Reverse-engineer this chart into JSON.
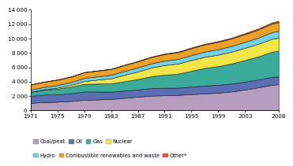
{
  "years": [
    1971,
    1973,
    1975,
    1977,
    1979,
    1981,
    1983,
    1985,
    1987,
    1989,
    1991,
    1993,
    1995,
    1997,
    1999,
    2001,
    2003,
    2005,
    2007,
    2008
  ],
  "coal_peat": [
    1040,
    1150,
    1200,
    1300,
    1480,
    1520,
    1580,
    1750,
    1900,
    2050,
    2100,
    2150,
    2250,
    2350,
    2450,
    2620,
    2900,
    3200,
    3550,
    3650
  ],
  "oil": [
    950,
    1050,
    1020,
    1080,
    1150,
    1100,
    1020,
    1000,
    1000,
    1050,
    1050,
    1000,
    1050,
    1100,
    1100,
    1100,
    1100,
    1100,
    1100,
    1050
  ],
  "gas": [
    580,
    680,
    790,
    900,
    1050,
    1100,
    1150,
    1300,
    1450,
    1650,
    1800,
    1950,
    2200,
    2450,
    2600,
    2800,
    3000,
    3200,
    3500,
    3600
  ],
  "nuclear": [
    20,
    50,
    150,
    250,
    400,
    550,
    700,
    900,
    1050,
    1200,
    1350,
    1400,
    1500,
    1550,
    1600,
    1650,
    1700,
    1750,
    1800,
    1800
  ],
  "hydro": [
    300,
    320,
    360,
    390,
    430,
    460,
    490,
    530,
    560,
    580,
    610,
    640,
    680,
    720,
    760,
    790,
    830,
    870,
    920,
    950
  ],
  "combustible_renew": [
    700,
    730,
    750,
    770,
    790,
    800,
    810,
    830,
    860,
    890,
    920,
    950,
    980,
    1000,
    1020,
    1040,
    1080,
    1120,
    1180,
    1200
  ],
  "other": [
    10,
    12,
    15,
    18,
    22,
    25,
    30,
    35,
    40,
    50,
    60,
    70,
    80,
    90,
    100,
    110,
    130,
    160,
    180,
    200
  ],
  "colors": {
    "coal_peat": "#b59dbe",
    "oil": "#5b6db5",
    "gas": "#3aab9a",
    "nuclear": "#f2e545",
    "hydro": "#6fd0ef",
    "combustible_renew": "#f0a020",
    "other": "#e05535"
  },
  "labels": [
    "Coal/peat",
    "Oil",
    "Gas",
    "Nuclear",
    "Hydro",
    "Combustible renewables and waste",
    "Other*"
  ],
  "ylim": [
    0,
    14000
  ],
  "yticks": [
    0,
    2000,
    4000,
    6000,
    8000,
    10000,
    12000,
    14000
  ],
  "xtick_years": [
    1971,
    1975,
    1979,
    1983,
    1987,
    1991,
    1995,
    1999,
    2003,
    2008
  ],
  "legend_row1": [
    "Coal/peat",
    "Oil",
    "Gas",
    "Nuclear"
  ],
  "legend_row2": [
    "Hydro",
    "Combustible renewables and waste",
    "Other*"
  ]
}
